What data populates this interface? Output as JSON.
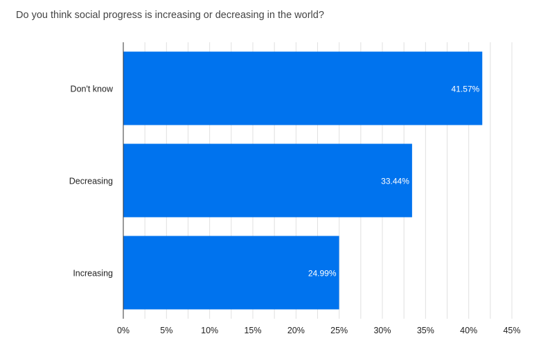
{
  "chart_data": {
    "type": "bar",
    "orientation": "horizontal",
    "title": "Do you think social progress is increasing or decreasing in the world?",
    "categories": [
      "Don't know",
      "Decreasing",
      "Increasing"
    ],
    "values": [
      41.57,
      33.44,
      24.99
    ],
    "data_labels": [
      "41.57%",
      "33.44%",
      "24.99%"
    ],
    "xlabel": "",
    "ylabel": "",
    "xlim": [
      0,
      45
    ],
    "x_ticks": [
      0,
      5,
      10,
      15,
      20,
      25,
      30,
      35,
      40,
      45
    ],
    "x_tick_labels": [
      "0%",
      "5%",
      "10%",
      "15%",
      "20%",
      "25%",
      "30%",
      "35%",
      "40%",
      "45%"
    ],
    "grid": true,
    "minor_grid_step": 2.5,
    "legend": "none",
    "bar_color": "#0073EE"
  }
}
